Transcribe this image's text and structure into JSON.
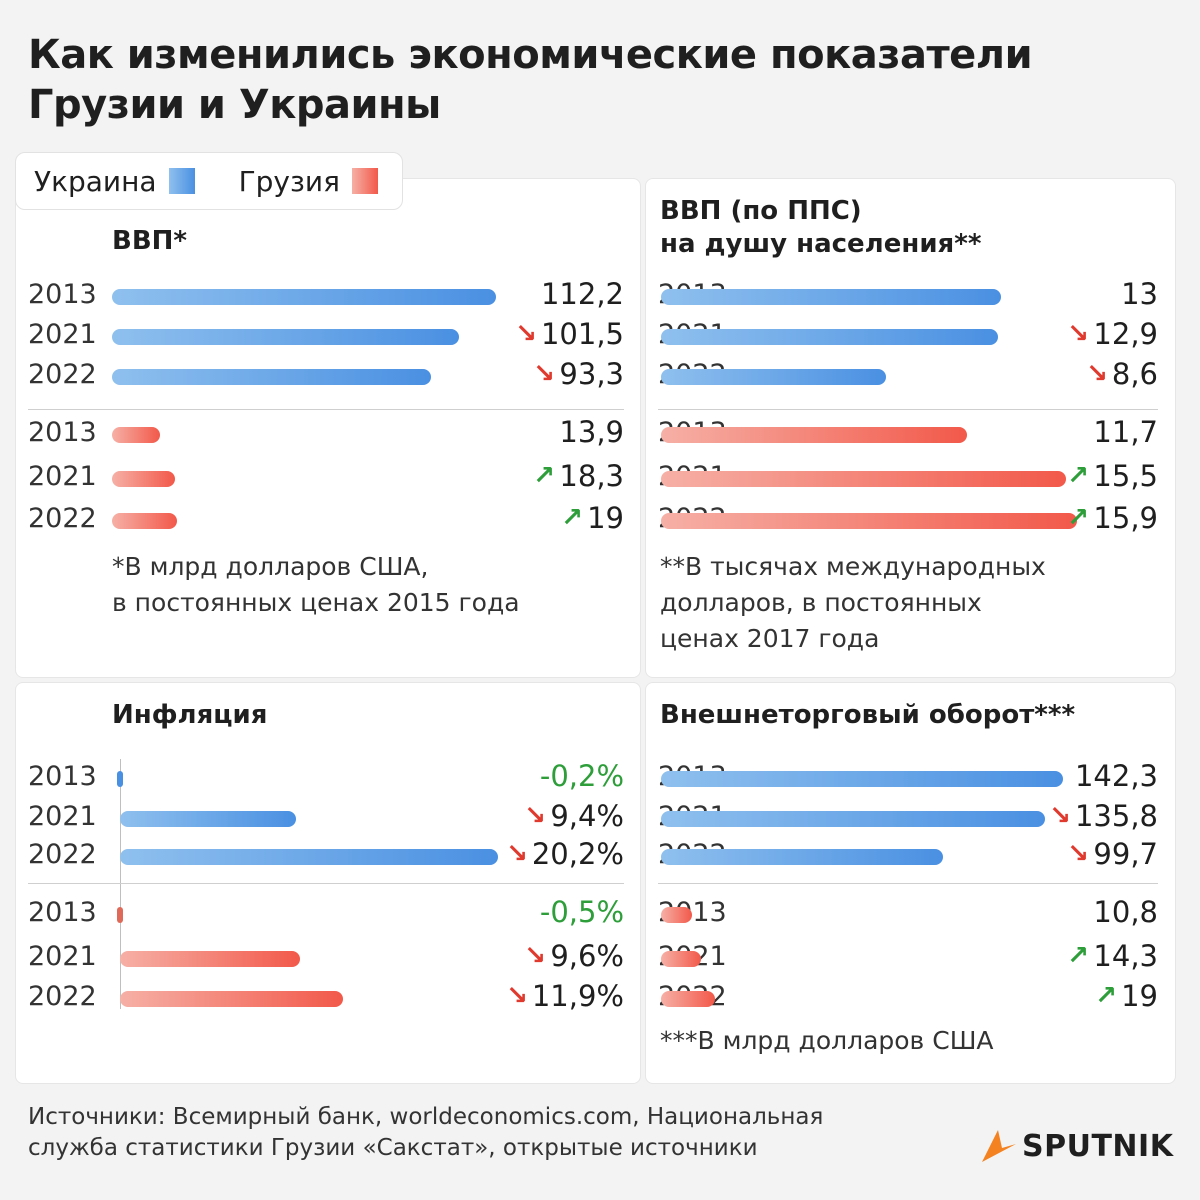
{
  "title": {
    "line1": "Как изменились экономические показатели",
    "line2": "Грузии и Украины"
  },
  "legend": {
    "ukraine": "Украина",
    "georgia": "Грузия"
  },
  "colors": {
    "ukraine": "#4a90e2",
    "georgia": "#f2594a",
    "decrease": "#e03a2e",
    "increase": "#2e9e3a"
  },
  "chart_data": [
    {
      "type": "bar",
      "orientation": "horizontal",
      "title": "ВВП*",
      "note": [
        "*В млрд долларов США,",
        "в постоянных ценах 2015 года"
      ],
      "series": [
        {
          "name": "Украина",
          "categories": [
            "2013",
            "2021",
            "2022"
          ],
          "values": [
            112.2,
            101.5,
            93.3
          ],
          "labels": [
            "112,2",
            "101,5",
            "93,3"
          ],
          "trend": [
            "none",
            "down",
            "down"
          ]
        },
        {
          "name": "Грузия",
          "categories": [
            "2013",
            "2021",
            "2022"
          ],
          "values": [
            13.9,
            18.3,
            19
          ],
          "labels": [
            "13,9",
            "18,3",
            "19"
          ],
          "trend": [
            "none",
            "up",
            "up"
          ]
        }
      ]
    },
    {
      "type": "bar",
      "orientation": "horizontal",
      "title": "ВВП (по ППС) на душу населения**",
      "title_lines": [
        "ВВП (по ППС)",
        "на душу населения**"
      ],
      "note": [
        "**В тысячах международных",
        "долларов, в постоянных",
        "ценах 2017 года"
      ],
      "series": [
        {
          "name": "Украина",
          "categories": [
            "2013",
            "2021",
            "2022"
          ],
          "values": [
            13,
            12.9,
            8.6
          ],
          "labels": [
            "13",
            "12,9",
            "8,6"
          ],
          "trend": [
            "none",
            "down",
            "down"
          ]
        },
        {
          "name": "Грузия",
          "categories": [
            "2013",
            "2021",
            "2022"
          ],
          "values": [
            11.7,
            15.5,
            15.9
          ],
          "labels": [
            "11,7",
            "15,5",
            "15,9"
          ],
          "trend": [
            "none",
            "up",
            "up"
          ]
        }
      ]
    },
    {
      "type": "bar",
      "orientation": "horizontal",
      "title": "Инфляция",
      "note": [],
      "series": [
        {
          "name": "Украина",
          "categories": [
            "2013",
            "2021",
            "2022"
          ],
          "values": [
            -0.2,
            9.4,
            20.2
          ],
          "labels": [
            "-0,2%",
            "9,4%",
            "20,2%"
          ],
          "trend": [
            "none",
            "down",
            "down"
          ]
        },
        {
          "name": "Грузия",
          "categories": [
            "2013",
            "2021",
            "2022"
          ],
          "values": [
            -0.5,
            9.6,
            11.9
          ],
          "labels": [
            "-0,5%",
            "9,6%",
            "11,9%"
          ],
          "trend": [
            "none",
            "down",
            "down"
          ]
        }
      ]
    },
    {
      "type": "bar",
      "orientation": "horizontal",
      "title": "Внешнеторговый оборот***",
      "note": [
        "***В млрд долларов США"
      ],
      "series": [
        {
          "name": "Украина",
          "categories": [
            "2013",
            "2021",
            "2022"
          ],
          "values": [
            142.3,
            135.8,
            99.7
          ],
          "labels": [
            "142,3",
            "135,8",
            "99,7"
          ],
          "trend": [
            "none",
            "down",
            "down"
          ]
        },
        {
          "name": "Грузия",
          "categories": [
            "2013",
            "2021",
            "2022"
          ],
          "values": [
            10.8,
            14.3,
            19
          ],
          "labels": [
            "10,8",
            "14,3",
            "19"
          ],
          "trend": [
            "none",
            "up",
            "up"
          ]
        }
      ]
    }
  ],
  "footer": {
    "line1": "Источники: Всемирный банк, worldeconomics.com, Национальная",
    "line2": "служба статистики Грузии «Сакстат», открытые источники"
  },
  "logo": {
    "text": "SPUTNIK"
  }
}
